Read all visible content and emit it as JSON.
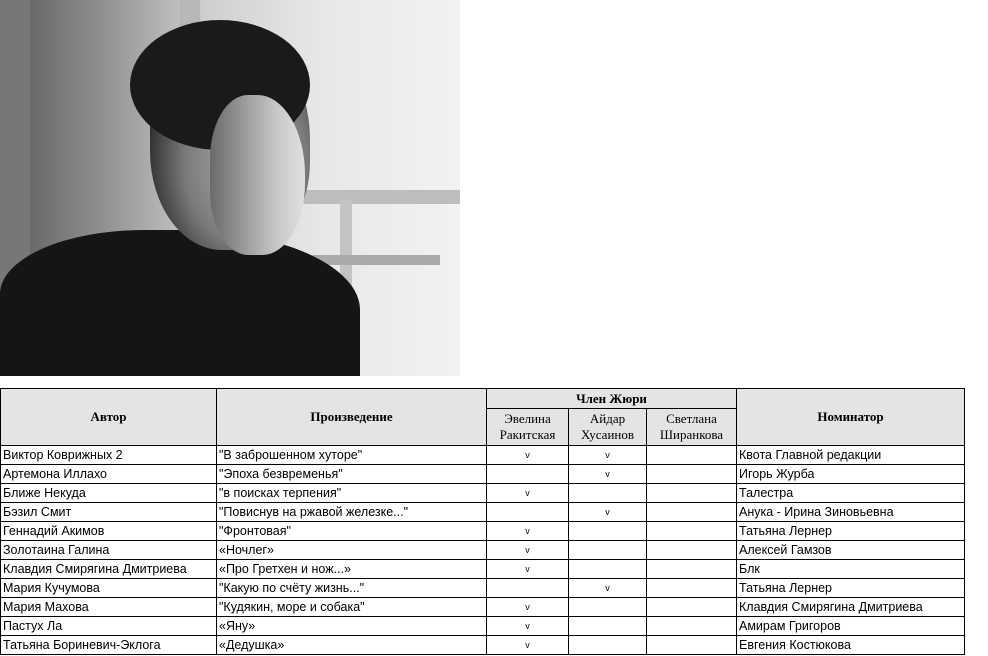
{
  "photo": {
    "alt": "portrait"
  },
  "table": {
    "headers": {
      "author": "Автор",
      "work": "Произведение",
      "jury": "Член Жюри",
      "jury_members": [
        "Эвелина Ракитская",
        "Айдар Хусаинов",
        "Светлана Ширанкова"
      ],
      "nominator": "Номинатор"
    },
    "mark": "v",
    "rows": [
      {
        "author": "Виктор Коврижных 2",
        "work": "\"В заброшенном хуторе\"",
        "votes": [
          "v",
          "v",
          ""
        ],
        "nominator": "Квота Главной редакции"
      },
      {
        "author": "Артемона Иллахо",
        "work": "\"Эпоха безвременья\"",
        "votes": [
          "",
          "v",
          ""
        ],
        "nominator": "Игорь Журба"
      },
      {
        "author": "Ближе Некуда",
        "work": "\"в поисках терпения\"",
        "votes": [
          "v",
          "",
          ""
        ],
        "nominator": "Талестра"
      },
      {
        "author": "Бэзил Смит",
        "work": "\"Повиснув на ржавой железке...\"",
        "votes": [
          "",
          "v",
          ""
        ],
        "nominator": "Анука - Ирина Зиновьевна"
      },
      {
        "author": "Геннадий Акимов",
        "work": "\"Фронтовая\"",
        "votes": [
          "v",
          "",
          ""
        ],
        "nominator": "Татьяна Лернер"
      },
      {
        "author": "Золотаина Галина",
        "work": "«Ночлег»",
        "votes": [
          "v",
          "",
          ""
        ],
        "nominator": "Алексей Гамзов"
      },
      {
        "author": "Клавдия Смирягина Дмитриева",
        "work": "«Про Гретхен и нож...»",
        "votes": [
          "v",
          "",
          ""
        ],
        "nominator": "Блк"
      },
      {
        "author": "Мария Кучумова",
        "work": "\"Какую по счёту жизнь...\"",
        "votes": [
          "",
          "v",
          ""
        ],
        "nominator": "Татьяна Лернер"
      },
      {
        "author": "Мария Махова",
        "work": "\"Кудякин, море и собака\"",
        "votes": [
          "v",
          "",
          ""
        ],
        "nominator": "Клавдия Смирягина Дмитриева"
      },
      {
        "author": "Пастух Ла",
        "work": "«Яну»",
        "votes": [
          "v",
          "",
          ""
        ],
        "nominator": "Амирам Григоров"
      },
      {
        "author": "Татьяна Бориневич-Эклога",
        "work": "«Дедушка»",
        "votes": [
          "v",
          "",
          ""
        ],
        "nominator": "Евгения Костюкова"
      }
    ]
  }
}
